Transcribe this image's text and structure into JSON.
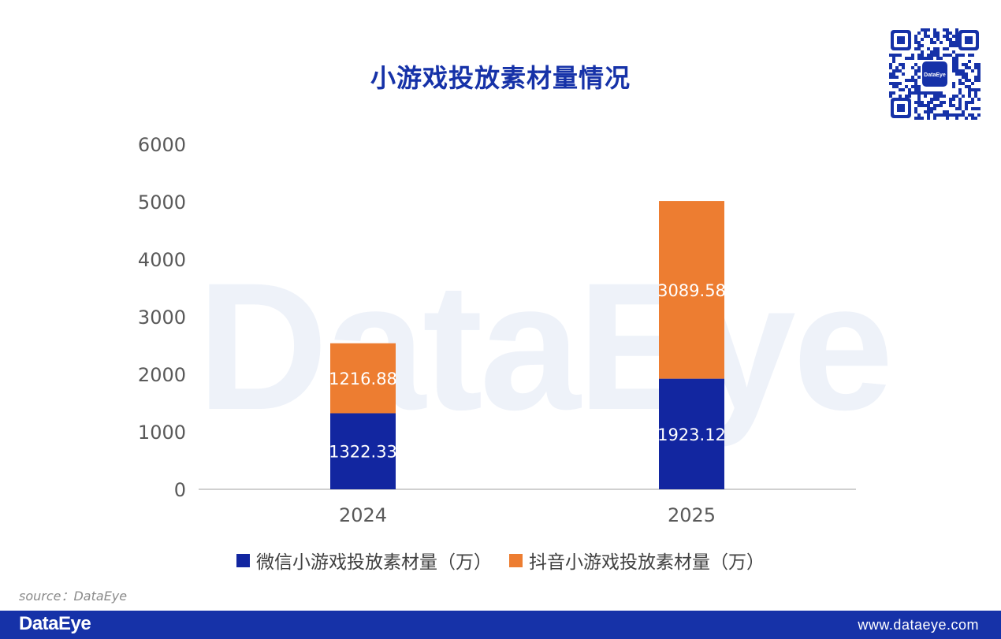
{
  "title": "小游戏投放素材量情况",
  "watermark": "DataEye",
  "qr_badge": "DataEye",
  "source": "source：DataEye",
  "footer": {
    "logo": "DataEye",
    "url": "www.dataeye.com"
  },
  "colors": {
    "title": "#1632a8",
    "wechat": "#1226a0",
    "douyin": "#ed7d31",
    "footer": "#1632a8"
  },
  "chart_data": {
    "type": "bar",
    "stacked": true,
    "title": "小游戏投放素材量情况",
    "categories": [
      "2024",
      "2025"
    ],
    "series": [
      {
        "name": "微信小游戏投放素材量（万）",
        "values": [
          1322.33,
          1923.12
        ],
        "color": "#1226a0",
        "labels": [
          "1322.33",
          "1923.12"
        ]
      },
      {
        "name": "抖音小游戏投放素材量（万）",
        "values": [
          1216.88,
          3089.58
        ],
        "color": "#ed7d31",
        "labels": [
          "1216.88",
          "3089.58"
        ]
      }
    ],
    "ylim": [
      0,
      6000
    ],
    "yticks": [
      "0",
      "1000",
      "2000",
      "3000",
      "4000",
      "5000",
      "6000"
    ],
    "grid": false,
    "legend": "bottom"
  }
}
